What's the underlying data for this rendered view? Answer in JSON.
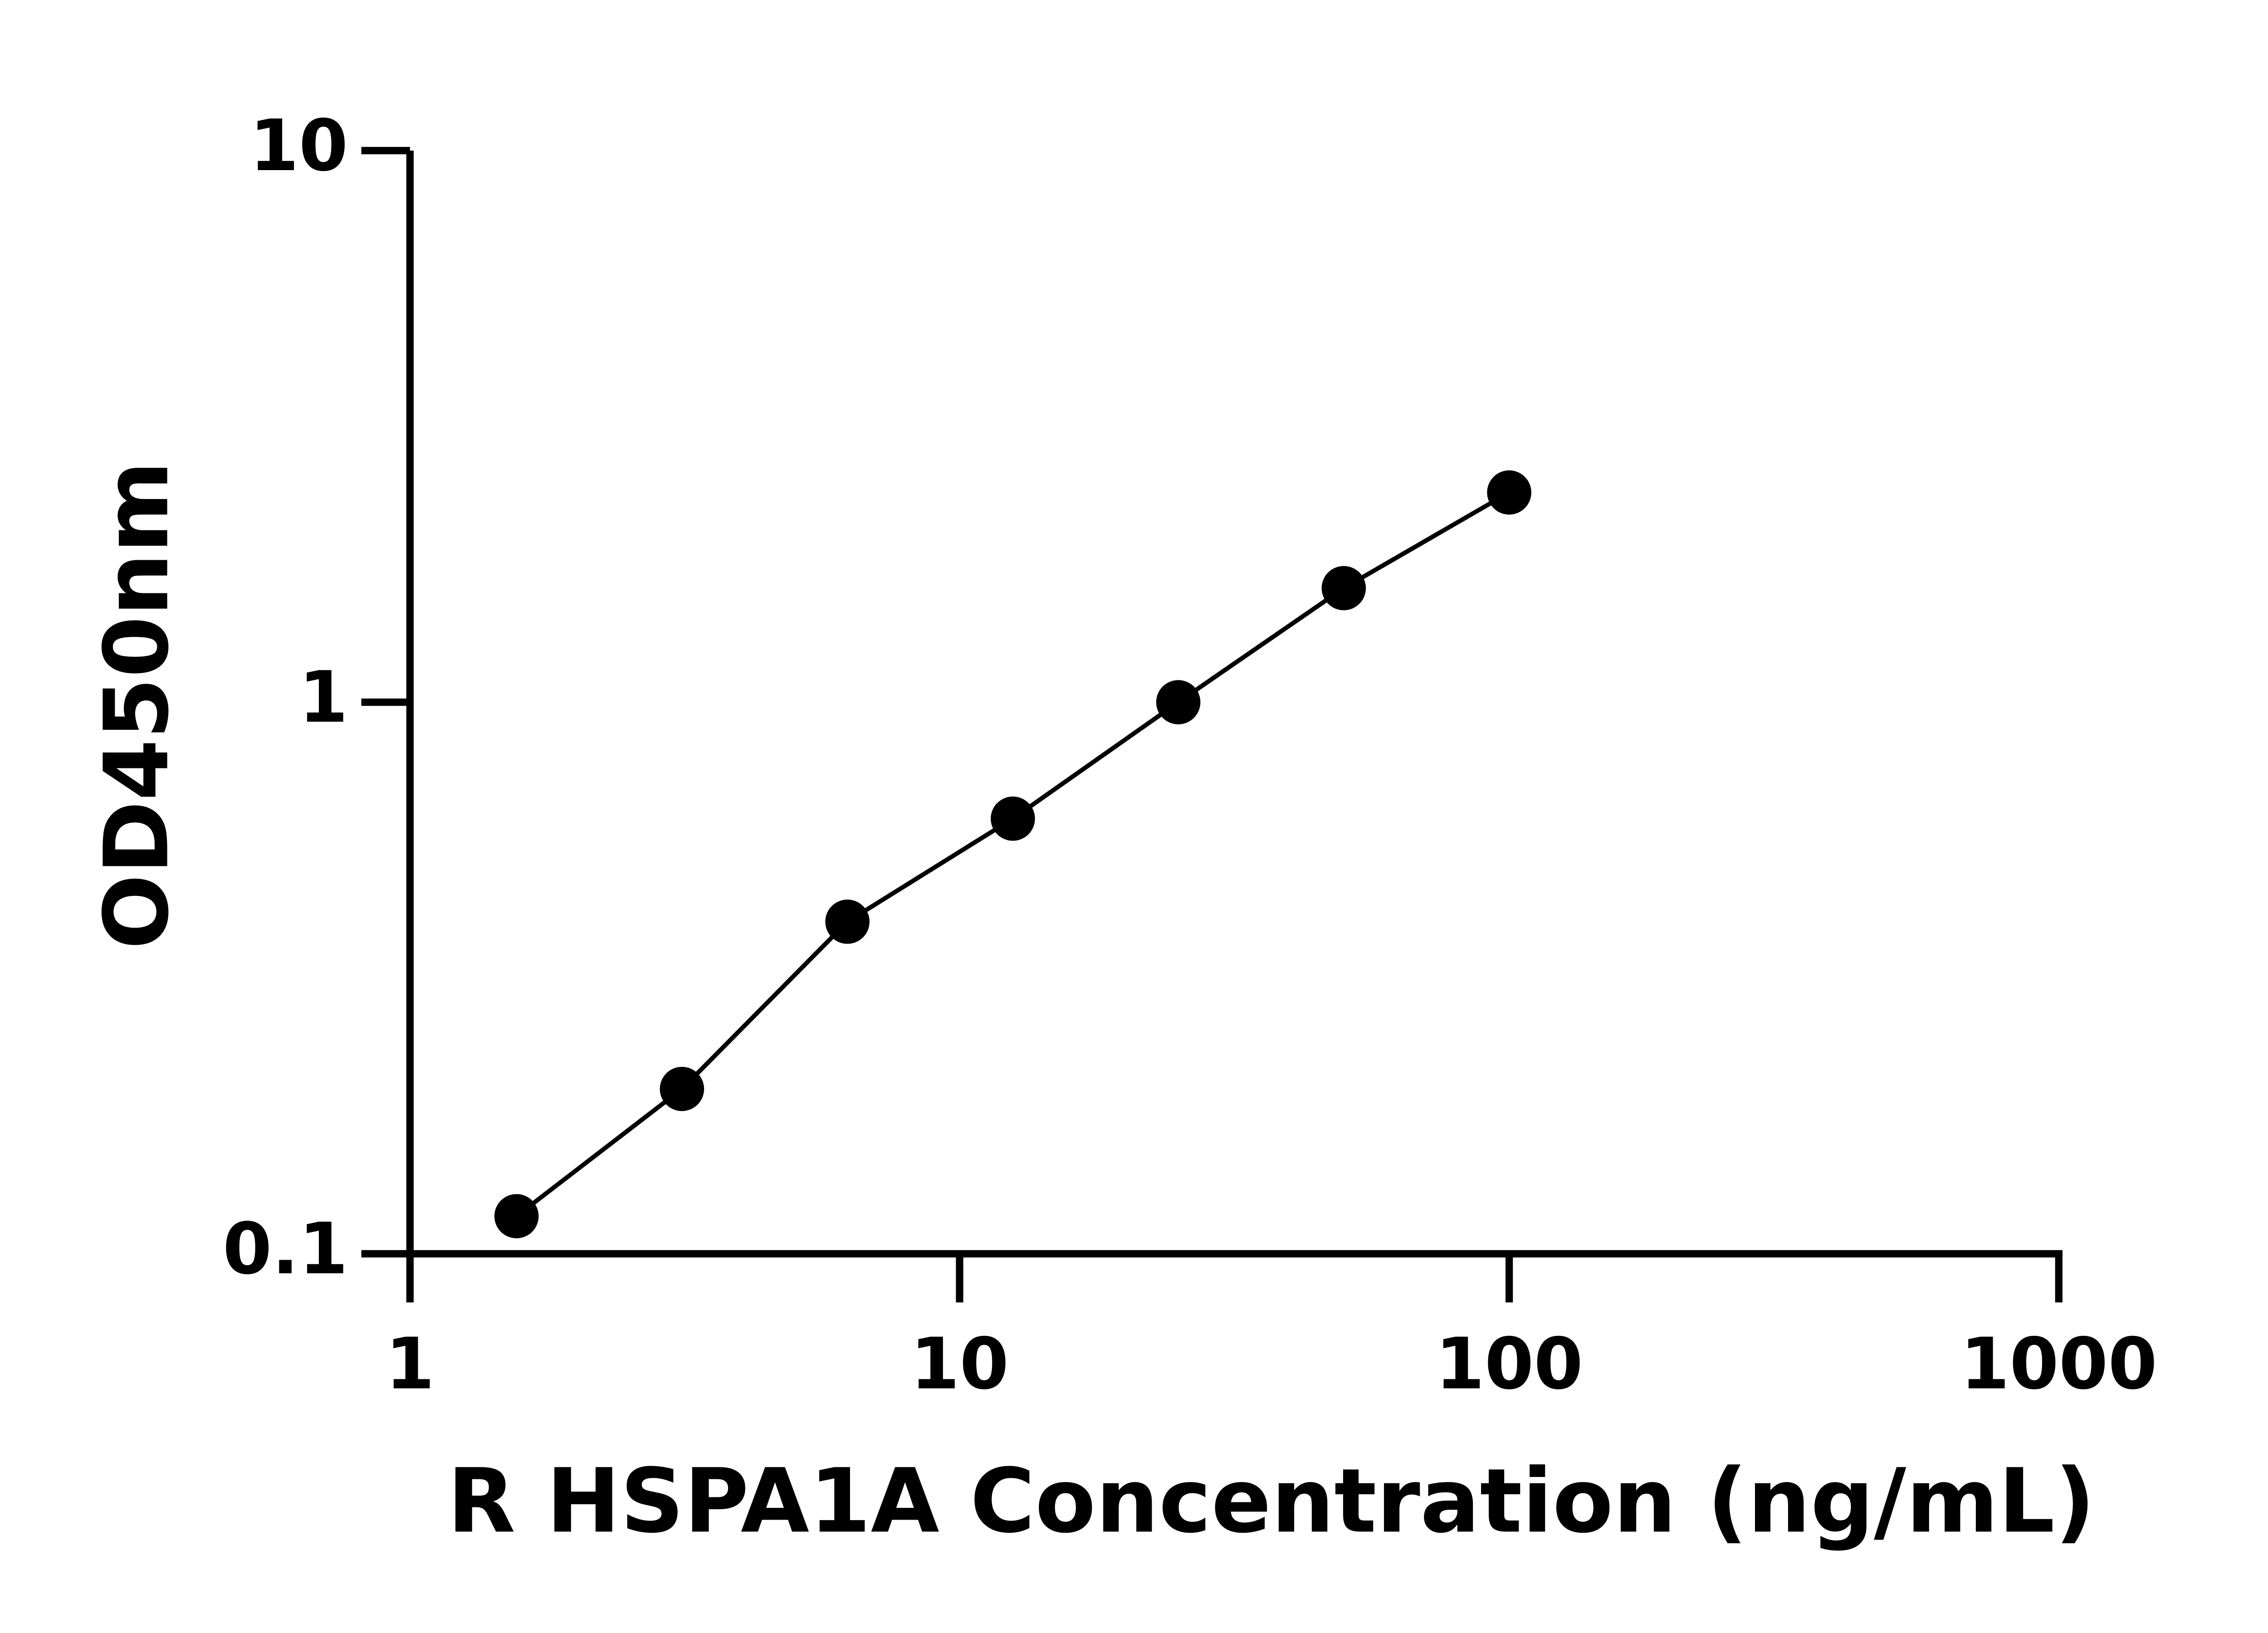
{
  "chart_data": {
    "type": "scatter-line",
    "x_label": "R HSPA1A Concentration (ng/mL)",
    "y_label": "OD450nm",
    "x": [
      1.5625,
      3.125,
      6.25,
      12.5,
      25,
      50,
      100
    ],
    "series": [
      {
        "color": "#000000",
        "values": [
          0.117,
          0.199,
          0.4,
          0.615,
          1.0,
          1.61,
          2.4
        ]
      }
    ],
    "xlim": [
      1,
      1000
    ],
    "ylim": [
      0.1,
      10
    ],
    "xticks": [
      1,
      10,
      100,
      1000
    ],
    "yticks": [
      0.1,
      1,
      10
    ],
    "xscale": "log",
    "yscale": "log",
    "grid": false
  }
}
